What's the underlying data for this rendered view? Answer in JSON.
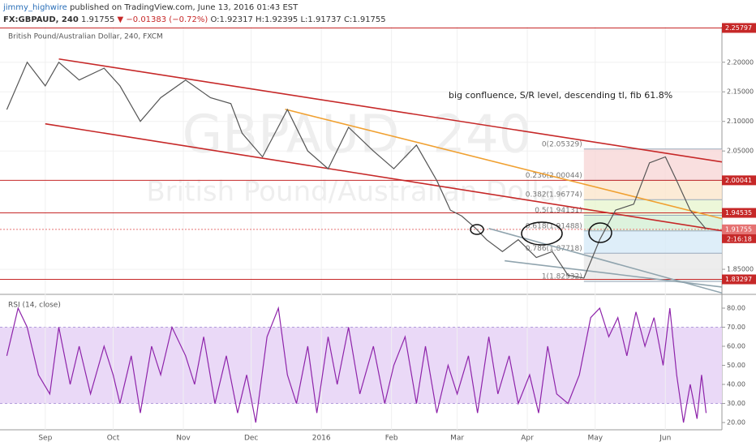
{
  "header": {
    "author": "jimmy_highwire",
    "published": "published on TradingView.com, June 13, 2016 01:43 EST",
    "symbol": "FX:GBPAUD, 240",
    "last": "1.91755",
    "change": "▼ −0.01383 (−0.72%)",
    "ohlc": "O:1.92317 H:1.92395 L:1.91737 C:1.91755"
  },
  "chart_data": [
    {
      "type": "line",
      "title": "British Pound/Australian Dollar, 240, FXCM",
      "watermark": "GBPAUD, 240",
      "watermark_subtitle": "British Pound/Australian Dollar",
      "annotation": "big confluence, S/R level, descending tl, fib 61.8%",
      "color": "#555555",
      "x": [
        -17,
        -8,
        0,
        6,
        15,
        26,
        33,
        42,
        51,
        62,
        73,
        82,
        87,
        96,
        107,
        116,
        125,
        134,
        145,
        154,
        164,
        173,
        179,
        184,
        190,
        195,
        202,
        209,
        217,
        224,
        231,
        238,
        245,
        252,
        260,
        267,
        274,
        279,
        285,
        292
      ],
      "values": [
        2.12,
        2.2,
        2.16,
        2.2,
        2.17,
        2.19,
        2.16,
        2.1,
        2.14,
        2.17,
        2.14,
        2.13,
        2.08,
        2.04,
        2.12,
        2.05,
        2.02,
        2.09,
        2.05,
        2.02,
        2.06,
        2.0,
        1.95,
        1.94,
        1.92,
        1.9,
        1.88,
        1.9,
        1.87,
        1.88,
        1.84,
        1.835,
        1.9,
        1.95,
        1.96,
        2.03,
        2.04,
        2.0,
        1.95,
        1.918
      ],
      "xlim": [
        -20,
        299
      ],
      "ylim": [
        1.809,
        2.26
      ],
      "xticks": [
        {
          "value": 0,
          "label": "Sep"
        },
        {
          "value": 30,
          "label": "Oct"
        },
        {
          "value": 61,
          "label": "Nov"
        },
        {
          "value": 91,
          "label": "Dec"
        },
        {
          "value": 122,
          "label": "2016"
        },
        {
          "value": 153,
          "label": "Feb"
        },
        {
          "value": 182,
          "label": "Mar"
        },
        {
          "value": 213,
          "label": "Apr"
        },
        {
          "value": 243,
          "label": "May"
        },
        {
          "value": 274,
          "label": "Jun"
        }
      ],
      "yticks": [
        {
          "value": 1.85,
          "label": "1.85000"
        },
        {
          "value": 2.05,
          "label": "2.05000"
        },
        {
          "value": 2.1,
          "label": "2.10000"
        },
        {
          "value": 2.15,
          "label": "2.15000"
        },
        {
          "value": 2.2,
          "label": "2.20000"
        }
      ],
      "grid": true,
      "hlines": [
        {
          "value": 2.25797,
          "color": "#c62828"
        },
        {
          "value": 2.00041,
          "color": "#c62828"
        },
        {
          "value": 1.94535,
          "color": "#c62828"
        },
        {
          "value": 1.91755,
          "color": "#e57373"
        },
        {
          "value": 1.83297,
          "color": "#c62828"
        }
      ],
      "countdown": "2:16:18",
      "trendlines": [
        {
          "x": [
            6,
            299
          ],
          "values": [
            2.2055,
            2.0315
          ],
          "color": "#c62828"
        },
        {
          "x": [
            0,
            299
          ],
          "values": [
            2.0959,
            1.9151
          ],
          "color": "#c62828"
        },
        {
          "x": [
            106,
            299
          ],
          "values": [
            2.1205,
            1.9356
          ],
          "color": "#f0a030"
        },
        {
          "x": [
            196,
            299
          ],
          "values": [
            1.919,
            1.81
          ],
          "color": "#90a4ae"
        },
        {
          "x": [
            203,
            299
          ],
          "values": [
            1.8644,
            1.82
          ],
          "color": "#90a4ae"
        }
      ],
      "fib": {
        "x": [
          238,
          299
        ],
        "levels": [
          {
            "value": 2.05329,
            "label": "0(2.05329)"
          },
          {
            "value": 2.00044,
            "label": "0.236(2.00044)"
          },
          {
            "value": 1.96774,
            "label": "0.382(1.96774)"
          },
          {
            "value": 1.94131,
            "label": "0.5(1.94131)"
          },
          {
            "value": 1.91488,
            "label": "0.618(1.91488)"
          },
          {
            "value": 1.87718,
            "label": "0.786(1.87718)"
          },
          {
            "value": 1.82932,
            "label": "1(1.82932)"
          }
        ],
        "colors": [
          "#f8d7d7",
          "#fbe6cc",
          "#e8f5d0",
          "#d5efd5",
          "#d6eaf8",
          "#e8e8e8"
        ]
      }
    },
    {
      "type": "line",
      "title": "RSI (14, close)",
      "color": "#8e24aa",
      "x": [
        -17,
        -12,
        -8,
        -3,
        2,
        6,
        11,
        15,
        20,
        26,
        30,
        33,
        38,
        42,
        47,
        51,
        56,
        62,
        66,
        70,
        75,
        80,
        85,
        89,
        93,
        98,
        103,
        107,
        111,
        116,
        120,
        125,
        129,
        134,
        139,
        145,
        150,
        154,
        159,
        164,
        168,
        173,
        178,
        182,
        187,
        191,
        196,
        200,
        205,
        209,
        214,
        218,
        222,
        226,
        231,
        236,
        241,
        245,
        249,
        253,
        257,
        261,
        265,
        269,
        273,
        276,
        279,
        282,
        285,
        288,
        290,
        292
      ],
      "values": [
        55,
        80,
        70,
        45,
        35,
        70,
        40,
        60,
        35,
        60,
        45,
        30,
        55,
        25,
        60,
        45,
        70,
        55,
        40,
        65,
        30,
        55,
        25,
        45,
        20,
        65,
        80,
        45,
        30,
        60,
        25,
        65,
        40,
        70,
        35,
        60,
        30,
        50,
        65,
        30,
        60,
        25,
        50,
        35,
        55,
        25,
        65,
        35,
        55,
        30,
        45,
        25,
        60,
        35,
        30,
        45,
        75,
        80,
        65,
        75,
        55,
        78,
        60,
        75,
        50,
        80,
        45,
        20,
        40,
        22,
        45,
        25
      ],
      "xlim": [
        -20,
        299
      ],
      "ylim": [
        16.2,
        86.8
      ],
      "yticks": [
        {
          "value": 20,
          "label": "20.00"
        },
        {
          "value": 30,
          "label": "30.00"
        },
        {
          "value": 40,
          "label": "40.00"
        },
        {
          "value": 50,
          "label": "50.00"
        },
        {
          "value": 60,
          "label": "60.00"
        },
        {
          "value": 70,
          "label": "70.00"
        },
        {
          "value": 80,
          "label": "80.00"
        }
      ],
      "band": [
        30,
        70
      ],
      "band_color": "#ead9f7"
    }
  ]
}
